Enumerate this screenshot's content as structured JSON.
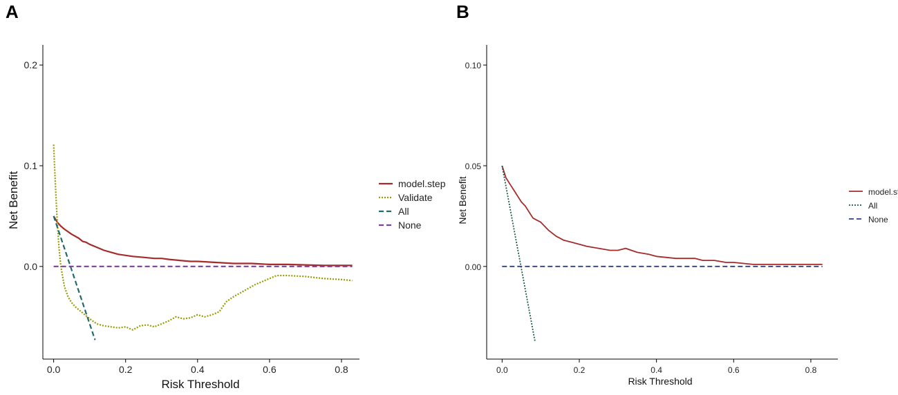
{
  "chart_data": [
    {
      "panel": "A",
      "type": "line",
      "title": "",
      "xlabel": "Risk Threshold",
      "ylabel": "Net Benefit",
      "xlim": [
        -0.03,
        0.85
      ],
      "ylim": [
        -0.092,
        0.22
      ],
      "xticks": [
        0.0,
        0.2,
        0.4,
        0.6,
        0.8
      ],
      "xtick_labels": [
        "0.0",
        "0.2",
        "0.4",
        "0.6",
        "0.8"
      ],
      "yticks": [
        0.0,
        0.1,
        0.2
      ],
      "ytick_labels": [
        "0.0",
        "0.1",
        "0.2"
      ],
      "grid": false,
      "legend_position": "right",
      "series": [
        {
          "name": "model.step",
          "color": "#a52a2a",
          "dash": "solid",
          "x": [
            0.0,
            0.01,
            0.02,
            0.03,
            0.05,
            0.07,
            0.08,
            0.09,
            0.1,
            0.12,
            0.14,
            0.16,
            0.18,
            0.2,
            0.22,
            0.25,
            0.28,
            0.3,
            0.32,
            0.35,
            0.38,
            0.4,
            0.45,
            0.5,
            0.55,
            0.6,
            0.65,
            0.7,
            0.75,
            0.8,
            0.83
          ],
          "values": [
            0.05,
            0.044,
            0.04,
            0.037,
            0.032,
            0.028,
            0.025,
            0.024,
            0.022,
            0.019,
            0.016,
            0.014,
            0.012,
            0.011,
            0.01,
            0.009,
            0.008,
            0.008,
            0.007,
            0.006,
            0.005,
            0.005,
            0.004,
            0.003,
            0.003,
            0.002,
            0.002,
            0.0015,
            0.001,
            0.001,
            0.001
          ]
        },
        {
          "name": "Validate",
          "color": "#999900",
          "dash": "dotted",
          "x": [
            0.0,
            0.005,
            0.01,
            0.015,
            0.02,
            0.03,
            0.04,
            0.05,
            0.06,
            0.08,
            0.1,
            0.12,
            0.14,
            0.16,
            0.18,
            0.2,
            0.22,
            0.24,
            0.26,
            0.28,
            0.3,
            0.32,
            0.34,
            0.36,
            0.38,
            0.4,
            0.42,
            0.44,
            0.46,
            0.48,
            0.5,
            0.52,
            0.54,
            0.56,
            0.58,
            0.6,
            0.62,
            0.65,
            0.7,
            0.75,
            0.8,
            0.83
          ],
          "values": [
            0.121,
            0.08,
            0.045,
            0.018,
            0.0,
            -0.02,
            -0.03,
            -0.036,
            -0.04,
            -0.046,
            -0.052,
            -0.057,
            -0.059,
            -0.06,
            -0.061,
            -0.06,
            -0.063,
            -0.059,
            -0.058,
            -0.06,
            -0.057,
            -0.054,
            -0.05,
            -0.052,
            -0.051,
            -0.048,
            -0.05,
            -0.048,
            -0.045,
            -0.035,
            -0.03,
            -0.026,
            -0.022,
            -0.018,
            -0.015,
            -0.012,
            -0.009,
            -0.009,
            -0.01,
            -0.012,
            -0.013,
            -0.014
          ]
        },
        {
          "name": "All",
          "color": "#1f6b6b",
          "dash": "dashed",
          "x": [
            0.0,
            0.115
          ],
          "values": [
            0.05,
            -0.073
          ]
        },
        {
          "name": "None",
          "color": "#7b3fa0",
          "dash": "dashed",
          "x": [
            0.0,
            0.83
          ],
          "values": [
            0.0,
            0.0
          ]
        }
      ]
    },
    {
      "panel": "B",
      "type": "line",
      "title": "",
      "xlabel": "Risk Threshold",
      "ylabel": "Net Benefit",
      "xlim": [
        -0.04,
        0.87
      ],
      "ylim": [
        -0.046,
        0.11
      ],
      "xticks": [
        0.0,
        0.2,
        0.4,
        0.6,
        0.8
      ],
      "xtick_labels": [
        "0.0",
        "0.2",
        "0.4",
        "0.6",
        "0.8"
      ],
      "yticks": [
        0.0,
        0.05,
        0.1
      ],
      "ytick_labels": [
        "0.00",
        "0.05",
        "0.10"
      ],
      "grid": false,
      "legend_position": "right",
      "series": [
        {
          "name": "model.step",
          "color": "#a52a2a",
          "dash": "solid",
          "x": [
            0.0,
            0.01,
            0.02,
            0.03,
            0.04,
            0.05,
            0.06,
            0.07,
            0.08,
            0.09,
            0.1,
            0.12,
            0.14,
            0.16,
            0.18,
            0.2,
            0.22,
            0.25,
            0.28,
            0.3,
            0.32,
            0.35,
            0.38,
            0.4,
            0.45,
            0.5,
            0.52,
            0.55,
            0.58,
            0.6,
            0.65,
            0.7,
            0.75,
            0.8,
            0.83
          ],
          "values": [
            0.05,
            0.044,
            0.041,
            0.038,
            0.035,
            0.032,
            0.03,
            0.027,
            0.024,
            0.023,
            0.022,
            0.018,
            0.015,
            0.013,
            0.012,
            0.011,
            0.01,
            0.009,
            0.008,
            0.008,
            0.009,
            0.007,
            0.006,
            0.005,
            0.004,
            0.004,
            0.003,
            0.003,
            0.002,
            0.002,
            0.001,
            0.001,
            0.001,
            0.001,
            0.001
          ]
        },
        {
          "name": "All",
          "color": "#1a5a4a",
          "dash": "dotted",
          "x": [
            0.0,
            0.085
          ],
          "values": [
            0.05,
            -0.037
          ]
        },
        {
          "name": "None",
          "color": "#2a3f8a",
          "dash": "dashed",
          "x": [
            0.0,
            0.83
          ],
          "values": [
            0.0,
            0.0
          ]
        }
      ]
    }
  ]
}
